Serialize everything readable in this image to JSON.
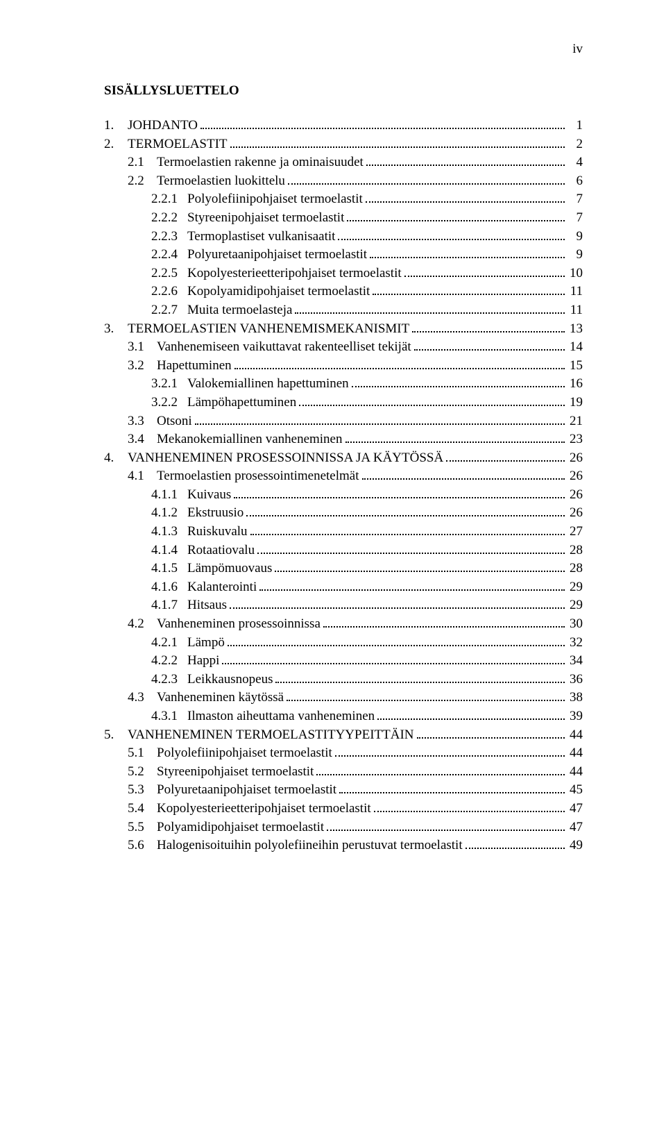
{
  "pageNumber": "iv",
  "title": "SISÄLLYSLUETTELO",
  "toc": [
    {
      "level": 0,
      "num": "1.",
      "label": "JOHDANTO",
      "page": "1"
    },
    {
      "level": 0,
      "num": "2.",
      "label": "TERMOELASTIT",
      "page": "2"
    },
    {
      "level": 1,
      "num": "2.1",
      "label": "Termoelastien rakenne ja ominaisuudet",
      "page": "4"
    },
    {
      "level": 1,
      "num": "2.2",
      "label": "Termoelastien luokittelu",
      "page": "6"
    },
    {
      "level": 2,
      "num": "2.2.1",
      "label": "Polyolefiinipohjaiset termoelastit",
      "page": "7"
    },
    {
      "level": 2,
      "num": "2.2.2",
      "label": "Styreenipohjaiset termoelastit",
      "page": "7"
    },
    {
      "level": 2,
      "num": "2.2.3",
      "label": "Termoplastiset vulkanisaatit",
      "page": "9"
    },
    {
      "level": 2,
      "num": "2.2.4",
      "label": "Polyuretaanipohjaiset termoelastit",
      "page": "9"
    },
    {
      "level": 2,
      "num": "2.2.5",
      "label": "Kopolyesterieetteripohjaiset termoelastit",
      "page": "10"
    },
    {
      "level": 2,
      "num": "2.2.6",
      "label": "Kopolyamidipohjaiset termoelastit",
      "page": "11"
    },
    {
      "level": 2,
      "num": "2.2.7",
      "label": "Muita termoelasteja",
      "page": "11"
    },
    {
      "level": 0,
      "num": "3.",
      "label": "TERMOELASTIEN VANHENEMISMEKANISMIT",
      "page": "13"
    },
    {
      "level": 1,
      "num": "3.1",
      "label": "Vanhenemiseen vaikuttavat rakenteelliset tekijät",
      "page": "14"
    },
    {
      "level": 1,
      "num": "3.2",
      "label": "Hapettuminen",
      "page": "15"
    },
    {
      "level": 2,
      "num": "3.2.1",
      "label": "Valokemiallinen hapettuminen",
      "page": "16"
    },
    {
      "level": 2,
      "num": "3.2.2",
      "label": "Lämpöhapettuminen",
      "page": "19"
    },
    {
      "level": 1,
      "num": "3.3",
      "label": "Otsoni",
      "page": "21"
    },
    {
      "level": 1,
      "num": "3.4",
      "label": "Mekanokemiallinen vanheneminen",
      "page": "23"
    },
    {
      "level": 0,
      "num": "4.",
      "label": "VANHENEMINEN PROSESSOINNISSA JA KÄYTÖSSÄ",
      "page": "26"
    },
    {
      "level": 1,
      "num": "4.1",
      "label": "Termoelastien prosessointimenetelmät",
      "page": "26"
    },
    {
      "level": 2,
      "num": "4.1.1",
      "label": "Kuivaus",
      "page": "26"
    },
    {
      "level": 2,
      "num": "4.1.2",
      "label": "Ekstruusio",
      "page": "26"
    },
    {
      "level": 2,
      "num": "4.1.3",
      "label": "Ruiskuvalu",
      "page": "27"
    },
    {
      "level": 2,
      "num": "4.1.4",
      "label": "Rotaatiovalu",
      "page": "28"
    },
    {
      "level": 2,
      "num": "4.1.5",
      "label": "Lämpömuovaus",
      "page": "28"
    },
    {
      "level": 2,
      "num": "4.1.6",
      "label": "Kalanterointi",
      "page": "29"
    },
    {
      "level": 2,
      "num": "4.1.7",
      "label": "Hitsaus",
      "page": "29"
    },
    {
      "level": 1,
      "num": "4.2",
      "label": "Vanheneminen prosessoinnissa",
      "page": "30"
    },
    {
      "level": 2,
      "num": "4.2.1",
      "label": "Lämpö",
      "page": "32"
    },
    {
      "level": 2,
      "num": "4.2.2",
      "label": "Happi",
      "page": "34"
    },
    {
      "level": 2,
      "num": "4.2.3",
      "label": "Leikkausnopeus",
      "page": "36"
    },
    {
      "level": 1,
      "num": "4.3",
      "label": "Vanheneminen käytössä",
      "page": "38"
    },
    {
      "level": 2,
      "num": "4.3.1",
      "label": "Ilmaston aiheuttama vanheneminen",
      "page": "39"
    },
    {
      "level": 0,
      "num": "5.",
      "label": "VANHENEMINEN TERMOELASTITYYPEITTÄIN",
      "page": "44"
    },
    {
      "level": 1,
      "num": "5.1",
      "label": "Polyolefiinipohjaiset termoelastit",
      "page": "44"
    },
    {
      "level": 1,
      "num": "5.2",
      "label": "Styreenipohjaiset termoelastit",
      "page": "44"
    },
    {
      "level": 1,
      "num": "5.3",
      "label": "Polyuretaanipohjaiset termoelastit",
      "page": "45"
    },
    {
      "level": 1,
      "num": "5.4",
      "label": "Kopolyesterieetteripohjaiset termoelastit",
      "page": "47"
    },
    {
      "level": 1,
      "num": "5.5",
      "label": "Polyamidipohjaiset termoelastit",
      "page": "47"
    },
    {
      "level": 1,
      "num": "5.6",
      "label": "Halogenisoituihin polyolefiineihin perustuvat termoelastit",
      "page": "49"
    }
  ]
}
